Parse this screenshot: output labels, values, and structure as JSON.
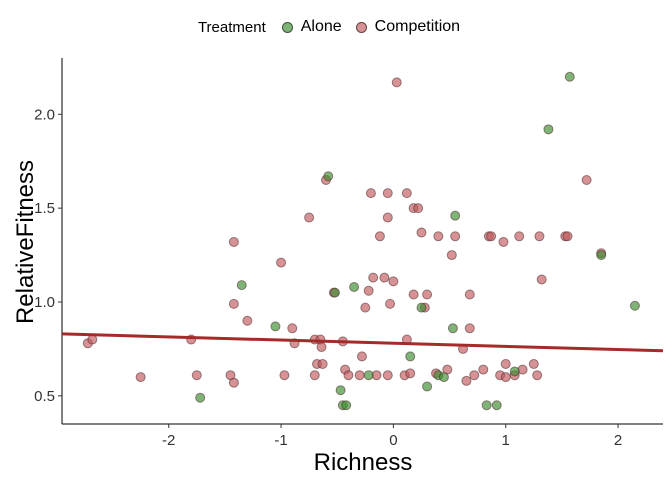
{
  "chart_data": {
    "type": "scatter",
    "title": "",
    "xlabel": "Richness",
    "ylabel": "RelativeFitness",
    "xlim": [
      -2.95,
      2.4
    ],
    "ylim": [
      0.35,
      2.3
    ],
    "x_ticks": [
      -2,
      -1,
      0,
      1,
      2
    ],
    "y_ticks": [
      0.5,
      1.0,
      1.5,
      2.0
    ],
    "x_tick_labels": [
      "-2",
      "-1",
      "0",
      "1",
      "2"
    ],
    "y_tick_labels": [
      "0.5",
      "1.0",
      "1.5",
      "2.0"
    ],
    "grid": false,
    "legend": {
      "title": "Treatment",
      "placement": "top",
      "entries": [
        "Alone",
        "Competition"
      ]
    },
    "colors": {
      "Alone": "#3a8c2e",
      "Competition": "#c0585a",
      "trend_line": "#a52a2a"
    },
    "trend_line": {
      "x": [
        -2.95,
        2.4
      ],
      "y": [
        0.83,
        0.74
      ]
    },
    "series": [
      {
        "name": "Alone",
        "points": [
          [
            -0.58,
            1.67
          ],
          [
            -0.52,
            1.05
          ],
          [
            -0.35,
            1.08
          ],
          [
            -1.35,
            1.09
          ],
          [
            -1.05,
            0.87
          ],
          [
            -0.47,
            0.53
          ],
          [
            -0.45,
            0.45
          ],
          [
            -0.42,
            0.45
          ],
          [
            -0.22,
            0.61
          ],
          [
            0.15,
            0.71
          ],
          [
            0.25,
            0.97
          ],
          [
            0.3,
            0.55
          ],
          [
            0.4,
            0.61
          ],
          [
            0.45,
            0.6
          ],
          [
            0.53,
            0.86
          ],
          [
            0.55,
            1.46
          ],
          [
            0.83,
            0.45
          ],
          [
            0.92,
            0.45
          ],
          [
            1.08,
            0.63
          ],
          [
            1.38,
            1.92
          ],
          [
            1.57,
            2.2
          ],
          [
            1.85,
            1.25
          ],
          [
            2.15,
            0.98
          ],
          [
            -1.72,
            0.49
          ]
        ]
      },
      {
        "name": "Competition",
        "points": [
          [
            -2.72,
            0.78
          ],
          [
            -2.68,
            0.8
          ],
          [
            -2.25,
            0.6
          ],
          [
            -1.8,
            0.8
          ],
          [
            -1.75,
            0.61
          ],
          [
            -1.45,
            0.61
          ],
          [
            -1.42,
            0.57
          ],
          [
            -1.42,
            1.32
          ],
          [
            -1.42,
            0.99
          ],
          [
            -1.3,
            0.9
          ],
          [
            -1.0,
            1.21
          ],
          [
            -0.97,
            0.61
          ],
          [
            -0.9,
            0.86
          ],
          [
            -0.88,
            0.78
          ],
          [
            -0.75,
            1.45
          ],
          [
            -0.7,
            0.8
          ],
          [
            -0.7,
            0.61
          ],
          [
            -0.68,
            0.67
          ],
          [
            -0.65,
            0.8
          ],
          [
            -0.64,
            0.76
          ],
          [
            -0.63,
            0.67
          ],
          [
            -0.6,
            1.65
          ],
          [
            -0.53,
            1.05
          ],
          [
            -0.45,
            0.79
          ],
          [
            -0.43,
            0.64
          ],
          [
            -0.4,
            0.61
          ],
          [
            -0.3,
            0.61
          ],
          [
            -0.28,
            0.71
          ],
          [
            -0.25,
            0.97
          ],
          [
            -0.22,
            1.06
          ],
          [
            -0.2,
            1.58
          ],
          [
            -0.18,
            1.13
          ],
          [
            -0.15,
            0.61
          ],
          [
            -0.12,
            1.35
          ],
          [
            -0.08,
            1.13
          ],
          [
            -0.05,
            1.58
          ],
          [
            -0.05,
            0.61
          ],
          [
            -0.05,
            1.45
          ],
          [
            -0.03,
            0.99
          ],
          [
            0.0,
            1.11
          ],
          [
            0.03,
            2.17
          ],
          [
            0.1,
            0.61
          ],
          [
            0.12,
            1.58
          ],
          [
            0.12,
            0.8
          ],
          [
            0.15,
            0.62
          ],
          [
            0.18,
            1.5
          ],
          [
            0.18,
            1.04
          ],
          [
            0.22,
            1.5
          ],
          [
            0.25,
            1.37
          ],
          [
            0.28,
            0.97
          ],
          [
            0.3,
            1.04
          ],
          [
            0.38,
            0.62
          ],
          [
            0.4,
            1.35
          ],
          [
            0.48,
            0.64
          ],
          [
            0.52,
            1.25
          ],
          [
            0.55,
            1.35
          ],
          [
            0.62,
            0.75
          ],
          [
            0.65,
            0.58
          ],
          [
            0.68,
            0.86
          ],
          [
            0.68,
            1.04
          ],
          [
            0.72,
            0.61
          ],
          [
            0.8,
            0.64
          ],
          [
            0.85,
            1.35
          ],
          [
            0.87,
            1.35
          ],
          [
            0.95,
            0.61
          ],
          [
            0.98,
            1.32
          ],
          [
            1.0,
            0.67
          ],
          [
            1.08,
            0.61
          ],
          [
            1.12,
            1.35
          ],
          [
            1.15,
            0.64
          ],
          [
            1.25,
            0.67
          ],
          [
            1.28,
            0.61
          ],
          [
            1.3,
            1.35
          ],
          [
            1.32,
            1.12
          ],
          [
            1.53,
            1.35
          ],
          [
            1.55,
            1.35
          ],
          [
            1.72,
            1.65
          ],
          [
            1.85,
            1.26
          ],
          [
            1.0,
            0.6
          ]
        ]
      }
    ]
  }
}
